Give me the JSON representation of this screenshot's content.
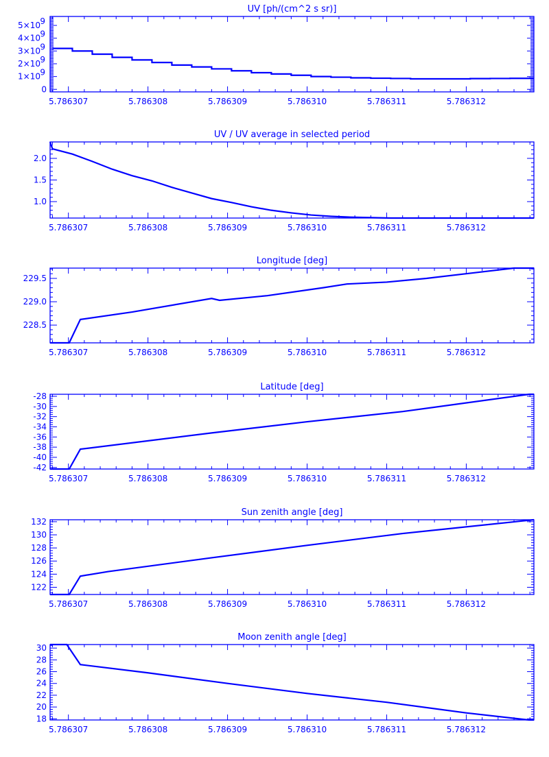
{
  "color": "#0000ff",
  "chart_data": [
    {
      "type": "line",
      "render": "step",
      "title": "UV [ph/(cm^2 s sr)]",
      "xlim": [
        5.78630677,
        5.78631285
      ],
      "ylim": [
        -200000000.0,
        5700000000.0
      ],
      "xticks": [
        5.786307,
        5.786308,
        5.786309,
        5.78631,
        5.786311,
        5.786312
      ],
      "xtick_labels": [
        "5.786307",
        "5.786308",
        "5.786309",
        "5.786310",
        "5.786311",
        "5.786312"
      ],
      "yticks": [
        0,
        1000000000.0,
        2000000000.0,
        3000000000.0,
        4000000000.0,
        5000000000.0
      ],
      "ytick_labels": [
        {
          "base": "0",
          "exp": ""
        },
        {
          "base": "1×10",
          "exp": "9"
        },
        {
          "base": "2×10",
          "exp": "9"
        },
        {
          "base": "3×10",
          "exp": "9"
        },
        {
          "base": "4×10",
          "exp": "9"
        },
        {
          "base": "5×10",
          "exp": "9"
        }
      ],
      "x": [
        5.7863068,
        5.78630705,
        5.7863073,
        5.78630755,
        5.7863078,
        5.78630805,
        5.7863083,
        5.78630855,
        5.7863088,
        5.78630905,
        5.7863093,
        5.78630955,
        5.7863098,
        5.78631005,
        5.7863103,
        5.78631055,
        5.7863108,
        5.78631105,
        5.7863113,
        5.78631155,
        5.7863118,
        5.78631205,
        5.7863123,
        5.78631255,
        5.7863128
      ],
      "y": [
        3200000000.0,
        3000000000.0,
        2750000000.0,
        2500000000.0,
        2300000000.0,
        2100000000.0,
        1900000000.0,
        1750000000.0,
        1600000000.0,
        1450000000.0,
        1300000000.0,
        1200000000.0,
        1100000000.0,
        1000000000.0,
        950000000.0,
        900000000.0,
        870000000.0,
        850000000.0,
        820000000.0,
        820000000.0,
        820000000.0,
        840000000.0,
        850000000.0,
        860000000.0,
        880000000.0
      ]
    },
    {
      "type": "line",
      "title": "UV / UV average in selected period",
      "xlim": [
        5.78630677,
        5.78631285
      ],
      "ylim": [
        0.62,
        2.38
      ],
      "xticks": [
        5.786307,
        5.786308,
        5.786309,
        5.78631,
        5.786311,
        5.786312
      ],
      "xtick_labels": [
        "5.786307",
        "5.786308",
        "5.786309",
        "5.786310",
        "5.786311",
        "5.786312"
      ],
      "yticks": [
        1.0,
        1.5,
        2.0
      ],
      "ytick_labels": [
        {
          "base": "1.0",
          "exp": ""
        },
        {
          "base": "1.5",
          "exp": ""
        },
        {
          "base": "2.0",
          "exp": ""
        }
      ],
      "x": [
        5.78630677,
        5.7863068,
        5.78630705,
        5.7863073,
        5.78630755,
        5.7863078,
        5.78630805,
        5.7863083,
        5.78630855,
        5.7863088,
        5.78630905,
        5.7863093,
        5.78630955,
        5.7863098,
        5.78631005,
        5.7863103,
        5.78631055,
        5.7863108,
        5.78631105,
        5.7863113,
        5.78631155,
        5.7863118,
        5.78631205,
        5.7863123,
        5.78631255,
        5.78631285
      ],
      "y": [
        2.38,
        2.22,
        2.1,
        1.93,
        1.75,
        1.6,
        1.48,
        1.33,
        1.2,
        1.07,
        0.98,
        0.88,
        0.8,
        0.74,
        0.69,
        0.66,
        0.64,
        0.63,
        0.62,
        0.62,
        0.62,
        0.62,
        0.62,
        0.62,
        0.62,
        0.62
      ]
    },
    {
      "type": "line",
      "title": "Longitude [deg]",
      "xlim": [
        5.78630677,
        5.78631285
      ],
      "ylim": [
        228.12,
        229.72
      ],
      "xticks": [
        5.786307,
        5.786308,
        5.786309,
        5.78631,
        5.786311,
        5.786312
      ],
      "xtick_labels": [
        "5.786307",
        "5.786308",
        "5.786309",
        "5.786310",
        "5.786311",
        "5.786312"
      ],
      "yticks": [
        228.5,
        229.0,
        229.5
      ],
      "ytick_labels": [
        {
          "base": "228.5",
          "exp": ""
        },
        {
          "base": "229.0",
          "exp": ""
        },
        {
          "base": "229.5",
          "exp": ""
        }
      ],
      "x": [
        5.78630677,
        5.78630701,
        5.78630715,
        5.7863078,
        5.7863088,
        5.7863089,
        5.7863095,
        5.7863102,
        5.7863105,
        5.786311,
        5.7863115,
        5.7863121,
        5.7863126,
        5.78631285
      ],
      "y": [
        228.12,
        228.12,
        228.62,
        228.78,
        229.07,
        229.03,
        229.13,
        229.3,
        229.38,
        229.42,
        229.5,
        229.62,
        229.72,
        229.72
      ]
    },
    {
      "type": "line",
      "title": "Latitude [deg]",
      "xlim": [
        5.78630677,
        5.78631285
      ],
      "ylim": [
        -42.3,
        -27.6
      ],
      "xticks": [
        5.786307,
        5.786308,
        5.786309,
        5.78631,
        5.786311,
        5.786312
      ],
      "xtick_labels": [
        "5.786307",
        "5.786308",
        "5.786309",
        "5.786310",
        "5.786311",
        "5.786312"
      ],
      "yticks": [
        -42,
        -40,
        -38,
        -36,
        -34,
        -32,
        -30,
        -28
      ],
      "ytick_labels": [
        {
          "base": "-42",
          "exp": ""
        },
        {
          "base": "-40",
          "exp": ""
        },
        {
          "base": "-38",
          "exp": ""
        },
        {
          "base": "-36",
          "exp": ""
        },
        {
          "base": "-34",
          "exp": ""
        },
        {
          "base": "-32",
          "exp": ""
        },
        {
          "base": "-30",
          "exp": ""
        },
        {
          "base": "-28",
          "exp": ""
        }
      ],
      "x": [
        5.78630677,
        5.78630701,
        5.78630715,
        5.7863088,
        5.78631,
        5.7863112,
        5.78631279,
        5.78631285
      ],
      "y": [
        -42.3,
        -42.3,
        -38.4,
        -35.2,
        -33.0,
        -31.0,
        -27.6,
        -27.6
      ]
    },
    {
      "type": "line",
      "title": "Sun zenith angle [deg]",
      "xlim": [
        5.78630677,
        5.78631285
      ],
      "ylim": [
        120.9,
        132.3
      ],
      "xticks": [
        5.786307,
        5.786308,
        5.786309,
        5.78631,
        5.786311,
        5.786312
      ],
      "xtick_labels": [
        "5.786307",
        "5.786308",
        "5.786309",
        "5.786310",
        "5.786311",
        "5.786312"
      ],
      "yticks": [
        122,
        124,
        126,
        128,
        130,
        132
      ],
      "ytick_labels": [
        {
          "base": "122",
          "exp": ""
        },
        {
          "base": "124",
          "exp": ""
        },
        {
          "base": "126",
          "exp": ""
        },
        {
          "base": "128",
          "exp": ""
        },
        {
          "base": "130",
          "exp": ""
        },
        {
          "base": "132",
          "exp": ""
        }
      ],
      "x": [
        5.78630677,
        5.78630701,
        5.78630715,
        5.7863075,
        5.7863088,
        5.78631,
        5.7863112,
        5.78631285
      ],
      "y": [
        120.9,
        120.9,
        123.7,
        124.4,
        126.5,
        128.4,
        130.2,
        132.3
      ]
    },
    {
      "type": "line",
      "title": "Moon zenith angle [deg]",
      "xlim": [
        5.78630677,
        5.78631285
      ],
      "ylim": [
        17.8,
        30.6
      ],
      "xticks": [
        5.786307,
        5.786308,
        5.786309,
        5.78631,
        5.786311,
        5.786312
      ],
      "xtick_labels": [
        "5.786307",
        "5.786308",
        "5.786309",
        "5.786310",
        "5.786311",
        "5.786312"
      ],
      "yticks": [
        18,
        20,
        22,
        24,
        26,
        28,
        30
      ],
      "ytick_labels": [
        {
          "base": "18",
          "exp": ""
        },
        {
          "base": "20",
          "exp": ""
        },
        {
          "base": "22",
          "exp": ""
        },
        {
          "base": "24",
          "exp": ""
        },
        {
          "base": "26",
          "exp": ""
        },
        {
          "base": "28",
          "exp": ""
        },
        {
          "base": "30",
          "exp": ""
        }
      ],
      "x": [
        5.78630677,
        5.78630698,
        5.78630715,
        5.786308,
        5.786309,
        5.78631,
        5.786311,
        5.786312,
        5.78631279,
        5.78631285
      ],
      "y": [
        30.6,
        30.6,
        27.2,
        25.8,
        24.0,
        22.3,
        20.8,
        19.0,
        17.8,
        17.8
      ]
    }
  ]
}
